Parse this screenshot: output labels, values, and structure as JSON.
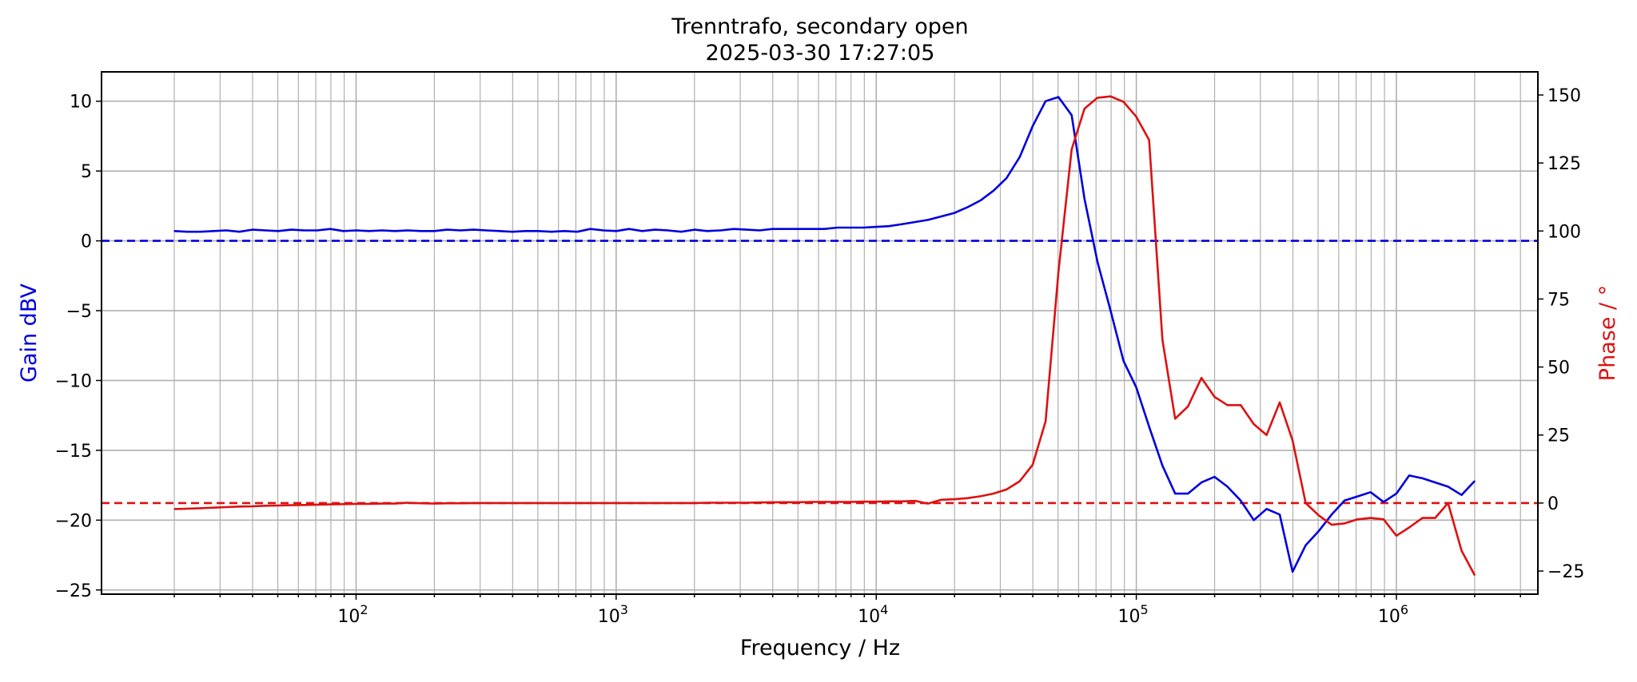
{
  "chart_data": {
    "type": "line",
    "title": "Trenntrafo, secondary open",
    "subtitle": "2025-03-30 17:27:05",
    "xlabel": "Frequency / Hz",
    "ylabel_left": "Gain dBV",
    "ylabel_right": "Phase / °",
    "x_scale": "log",
    "xlim": [
      10.5,
      3500000
    ],
    "ylim_left": [
      -25.3,
      12.1
    ],
    "ylim_right": [
      -33.5,
      158.5
    ],
    "x_ticks": [
      {
        "value": 100,
        "base": "10",
        "exp": "2"
      },
      {
        "value": 1000,
        "base": "10",
        "exp": "3"
      },
      {
        "value": 10000,
        "base": "10",
        "exp": "4"
      },
      {
        "value": 100000,
        "base": "10",
        "exp": "5"
      },
      {
        "value": 1000000,
        "base": "10",
        "exp": "6"
      }
    ],
    "y_left_ticks": [
      "10",
      "5",
      "0",
      "−5",
      "−10",
      "−15",
      "−20",
      "−25"
    ],
    "y_right_ticks": [
      "150",
      "125",
      "100",
      "75",
      "50",
      "25",
      "0",
      "−25"
    ],
    "grid": true,
    "colors": {
      "gain": "#0000dd",
      "phase": "#dd1111",
      "grid": "#b0b0b0"
    },
    "reference_lines": [
      {
        "axis": "left",
        "value": 0,
        "color": "#0000dd",
        "style": "dashed"
      },
      {
        "axis": "right",
        "value": 0,
        "color": "#dd1111",
        "style": "dashed"
      }
    ],
    "series": [
      {
        "axis": "left",
        "color": "#0000dd",
        "x": [
          20,
          22.4,
          25.2,
          28.3,
          31.7,
          35.6,
          39.9,
          44.8,
          50.2,
          56.4,
          63.2,
          70.9,
          79.6,
          89.3,
          100.2,
          112,
          126,
          141,
          158,
          178,
          200,
          224,
          252,
          283,
          317,
          356,
          399,
          448,
          502,
          564,
          632,
          709,
          796,
          893,
          1002,
          1120,
          1260,
          1410,
          1580,
          1780,
          2000,
          2240,
          2520,
          2830,
          3170,
          3560,
          3990,
          4480,
          5020,
          5640,
          6320,
          7090,
          7960,
          8930,
          10000,
          11200,
          12600,
          14100,
          15800,
          17800,
          20000,
          22400,
          25200,
          28300,
          31700,
          35600,
          39900,
          44800,
          50200,
          56400,
          63200,
          70900,
          79600,
          89300,
          100000,
          112000,
          126000,
          141000,
          158000,
          178000,
          200000,
          224000,
          252000,
          283000,
          317000,
          356000,
          399000,
          448000,
          502000,
          564000,
          632000,
          709000,
          796000,
          893000,
          1000000,
          1120000,
          1260000,
          1410000,
          1580000,
          1780000,
          2000000
        ],
        "values": [
          0.7,
          0.65,
          0.65,
          0.7,
          0.75,
          0.65,
          0.8,
          0.75,
          0.7,
          0.8,
          0.75,
          0.75,
          0.85,
          0.7,
          0.75,
          0.7,
          0.75,
          0.7,
          0.75,
          0.7,
          0.7,
          0.8,
          0.75,
          0.8,
          0.75,
          0.7,
          0.65,
          0.7,
          0.7,
          0.65,
          0.7,
          0.65,
          0.85,
          0.75,
          0.7,
          0.85,
          0.7,
          0.8,
          0.75,
          0.65,
          0.8,
          0.7,
          0.75,
          0.85,
          0.8,
          0.75,
          0.85,
          0.85,
          0.85,
          0.85,
          0.85,
          0.95,
          0.95,
          0.95,
          1.0,
          1.05,
          1.2,
          1.35,
          1.5,
          1.75,
          2.0,
          2.4,
          2.9,
          3.6,
          4.5,
          6.0,
          8.2,
          10.0,
          10.3,
          9.0,
          3.0,
          -1.5,
          -5.0,
          -8.6,
          -10.5,
          -13.3,
          -16.1,
          -18.1,
          -18.1,
          -17.3,
          -16.9,
          -17.6,
          -18.6,
          -20.0,
          -19.2,
          -19.6,
          -23.7,
          -21.8,
          -20.8,
          -19.6,
          -18.6,
          -18.3,
          -18.0,
          -18.7,
          -18.1,
          -16.8,
          -17.0,
          -17.3,
          -17.6,
          -18.2,
          -17.2
        ]
      },
      {
        "axis": "right",
        "color": "#dd1111",
        "x": [
          20,
          22.4,
          25.2,
          28.3,
          31.7,
          35.6,
          39.9,
          44.8,
          50.2,
          56.4,
          63.2,
          70.9,
          79.6,
          89.3,
          100.2,
          112,
          126,
          141,
          158,
          178,
          200,
          224,
          252,
          283,
          317,
          356,
          399,
          448,
          502,
          564,
          632,
          709,
          796,
          893,
          1002,
          1120,
          1260,
          1410,
          1580,
          1780,
          2000,
          2240,
          2520,
          2830,
          3170,
          3560,
          3990,
          4480,
          5020,
          5640,
          6320,
          7090,
          7960,
          8930,
          10000,
          11200,
          12600,
          14100,
          15800,
          17800,
          20000,
          22400,
          25200,
          28300,
          31700,
          35600,
          39900,
          44800,
          50200,
          56400,
          63200,
          70900,
          79600,
          89300,
          100000,
          112000,
          126000,
          141000,
          158000,
          178000,
          200000,
          224000,
          252000,
          283000,
          317000,
          356000,
          399000,
          448000,
          502000,
          564000,
          632000,
          709000,
          796000,
          893000,
          1000000,
          1120000,
          1260000,
          1410000,
          1580000,
          1780000,
          2000000
        ],
        "values": [
          -2.2,
          -2.1,
          -1.9,
          -1.7,
          -1.5,
          -1.3,
          -1.2,
          -1.0,
          -0.9,
          -0.8,
          -0.7,
          -0.6,
          -0.5,
          -0.4,
          -0.3,
          -0.3,
          -0.2,
          -0.2,
          0.1,
          -0.1,
          -0.2,
          -0.1,
          -0.1,
          0.0,
          0.0,
          0.0,
          0.0,
          0.0,
          0.0,
          0.0,
          0.0,
          0.0,
          0.0,
          0.0,
          0.0,
          0.0,
          0.0,
          0.0,
          0.0,
          0.0,
          0.0,
          0.1,
          0.1,
          0.1,
          0.1,
          0.2,
          0.3,
          0.3,
          0.3,
          0.4,
          0.4,
          0.4,
          0.4,
          0.5,
          0.5,
          0.6,
          0.6,
          0.8,
          -0.2,
          1.2,
          1.4,
          1.8,
          2.5,
          3.5,
          5.0,
          8.0,
          14.0,
          30.0,
          85.0,
          130.0,
          145.0,
          149.0,
          149.5,
          147.5,
          142.0,
          133.5,
          60.0,
          31.0,
          35.5,
          46.0,
          39.0,
          36.0,
          36.0,
          29.0,
          25.0,
          37.0,
          23.0,
          0.0,
          -4.5,
          -8.0,
          -7.5,
          -6.0,
          -5.5,
          -6.0,
          -12.0,
          -9.0,
          -5.5,
          -5.5,
          0.0,
          -17.5,
          -26.5
        ]
      }
    ]
  }
}
